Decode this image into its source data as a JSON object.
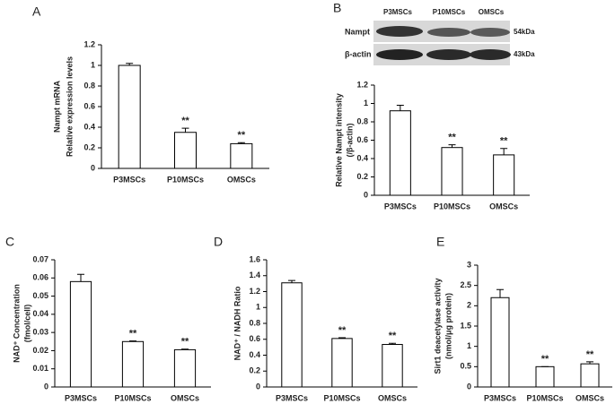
{
  "chart_data": [
    {
      "type": "bar",
      "panel": "A",
      "ylabel": [
        "Nampt  mRNA",
        "Relative expression  levels"
      ],
      "categories": [
        "P3MSCs",
        "P10MSCs",
        "OMSCs"
      ],
      "values": [
        1.0,
        0.35,
        0.24
      ],
      "errors": [
        0.02,
        0.04,
        0.01
      ],
      "significance": [
        null,
        "**",
        "**"
      ],
      "ylim": [
        0,
        1.2
      ],
      "yticks": [
        0,
        0.2,
        0.4,
        0.6,
        0.8,
        1,
        1.2
      ]
    },
    {
      "type": "bar",
      "panel": "B",
      "ylabel": [
        "Relative Nampt intensity",
        "(/β-actin)"
      ],
      "categories": [
        "P3MSCs",
        "P10MSCs",
        "OMSCs"
      ],
      "values": [
        0.92,
        0.52,
        0.44
      ],
      "errors": [
        0.06,
        0.03,
        0.07
      ],
      "significance": [
        null,
        "**",
        "**"
      ],
      "ylim": [
        0,
        1.2
      ],
      "yticks": [
        0,
        0.2,
        0.4,
        0.6,
        0.8,
        1,
        1.2
      ]
    },
    {
      "type": "bar",
      "panel": "C",
      "ylabel": [
        "NAD⁺ Concentration",
        "(fmol/cell)"
      ],
      "categories": [
        "P3MSCs",
        "P10MSCs",
        "OMSCs"
      ],
      "values": [
        0.058,
        0.025,
        0.0205
      ],
      "errors": [
        0.004,
        0.0003,
        0.0003
      ],
      "significance": [
        null,
        "**",
        "**"
      ],
      "ylim": [
        0,
        0.07
      ],
      "yticks": [
        0,
        0.01,
        0.02,
        0.03,
        0.04,
        0.05,
        0.06,
        0.07
      ]
    },
    {
      "type": "bar",
      "panel": "D",
      "ylabel": [
        "NAD⁺ / NADH Ratio"
      ],
      "categories": [
        "P3MSCs",
        "P10MSCs",
        "OMSCs"
      ],
      "values": [
        1.31,
        0.61,
        0.535
      ],
      "errors": [
        0.03,
        0.01,
        0.015
      ],
      "significance": [
        null,
        "**",
        "**"
      ],
      "ylim": [
        0,
        1.6
      ],
      "yticks": [
        0,
        0.2,
        0.4,
        0.6,
        0.8,
        1,
        1.2,
        1.4,
        1.6
      ]
    },
    {
      "type": "bar",
      "panel": "E",
      "ylabel": [
        "Sirt1 deacetylase activity",
        "(nmol/μg protein)"
      ],
      "categories": [
        "P3MSCs",
        "P10MSCs",
        "OMSCs"
      ],
      "values": [
        2.2,
        0.5,
        0.57
      ],
      "errors": [
        0.2,
        0,
        0.05
      ],
      "significance": [
        null,
        "**",
        "**"
      ],
      "ylim": [
        0,
        3
      ],
      "yticks": [
        0,
        0.5,
        1,
        1.5,
        2,
        2.5,
        3
      ]
    }
  ],
  "blot": {
    "lanes": [
      "P3MSCs",
      "P10MSCs",
      "OMSCs"
    ],
    "rows": [
      "Nampt",
      "β-actin"
    ],
    "sizes": [
      "54kDa",
      "43kDa"
    ]
  }
}
